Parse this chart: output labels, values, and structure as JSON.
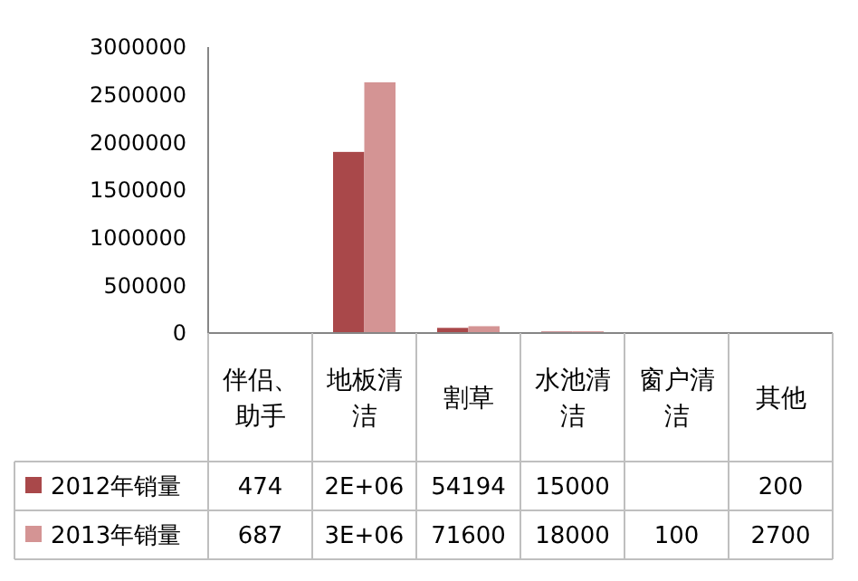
{
  "chart_data": {
    "type": "bar",
    "categories": [
      "伴侣、助手",
      "地板清洁",
      "割草",
      "水池清洁",
      "窗户清洁",
      "其他"
    ],
    "series": [
      {
        "name": "2012年销量",
        "color": "#a9484a",
        "values": [
          474,
          1900000,
          54194,
          15000,
          null,
          200
        ],
        "value_labels": [
          "474",
          "2E+06",
          "54194",
          "15000",
          null,
          "200"
        ]
      },
      {
        "name": "2013年销量",
        "color": "#d49494",
        "values": [
          687,
          2630000,
          71600,
          18000,
          100,
          2700
        ],
        "value_labels": [
          "687",
          "3E+06",
          "71600",
          "18000",
          "100",
          "2700"
        ]
      }
    ],
    "ylim": [
      0,
      3000000
    ],
    "yticks": [
      0,
      500000,
      1000000,
      1500000,
      2000000,
      2500000,
      3000000
    ],
    "grid": false,
    "legend": "bottom"
  }
}
